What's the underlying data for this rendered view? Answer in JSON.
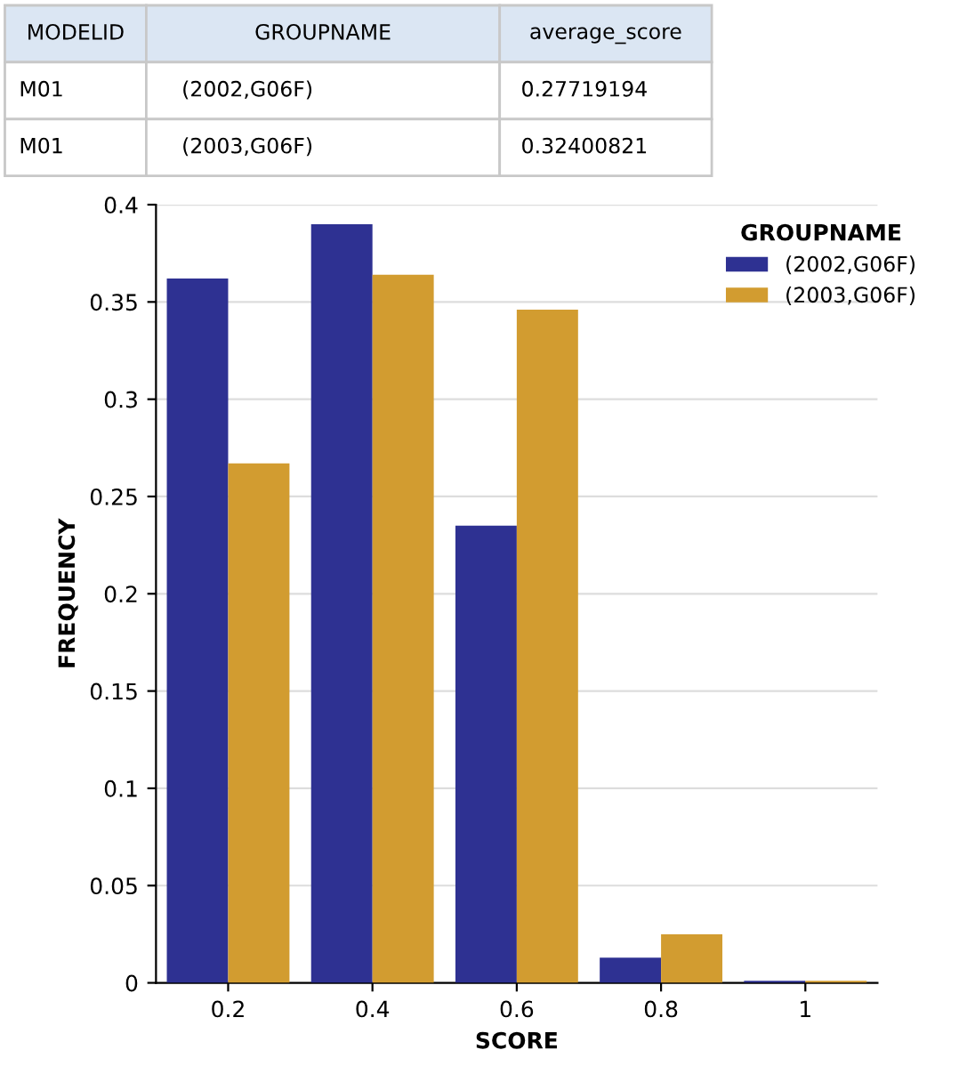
{
  "chart_data": {
    "type": "bar",
    "xlabel": "SCORE",
    "ylabel": "FREQUENCY",
    "legend_title": "GROUPNAME",
    "categories": [
      "0.2",
      "0.4",
      "0.6",
      "0.8",
      "1"
    ],
    "series": [
      {
        "name": "(2002,G06F)",
        "color": "#2e3192",
        "values": [
          0.362,
          0.39,
          0.235,
          0.013,
          0.001
        ]
      },
      {
        "name": "(2003,G06F)",
        "color": "#d29c30",
        "values": [
          0.267,
          0.364,
          0.346,
          0.025,
          0.001
        ]
      }
    ],
    "ylim": [
      0,
      0.4
    ],
    "yticks": [
      0,
      0.05,
      0.1,
      0.15,
      0.2,
      0.25,
      0.3,
      0.35,
      0.4
    ],
    "grid": "y",
    "legend": "top right",
    "annotations": [
      "MODELID",
      "GROUPNAME",
      "average_score",
      "M01",
      "(2002,G06F)",
      "0.27719194",
      "M01",
      "(2003,G06F)",
      "0.32400821"
    ]
  }
}
